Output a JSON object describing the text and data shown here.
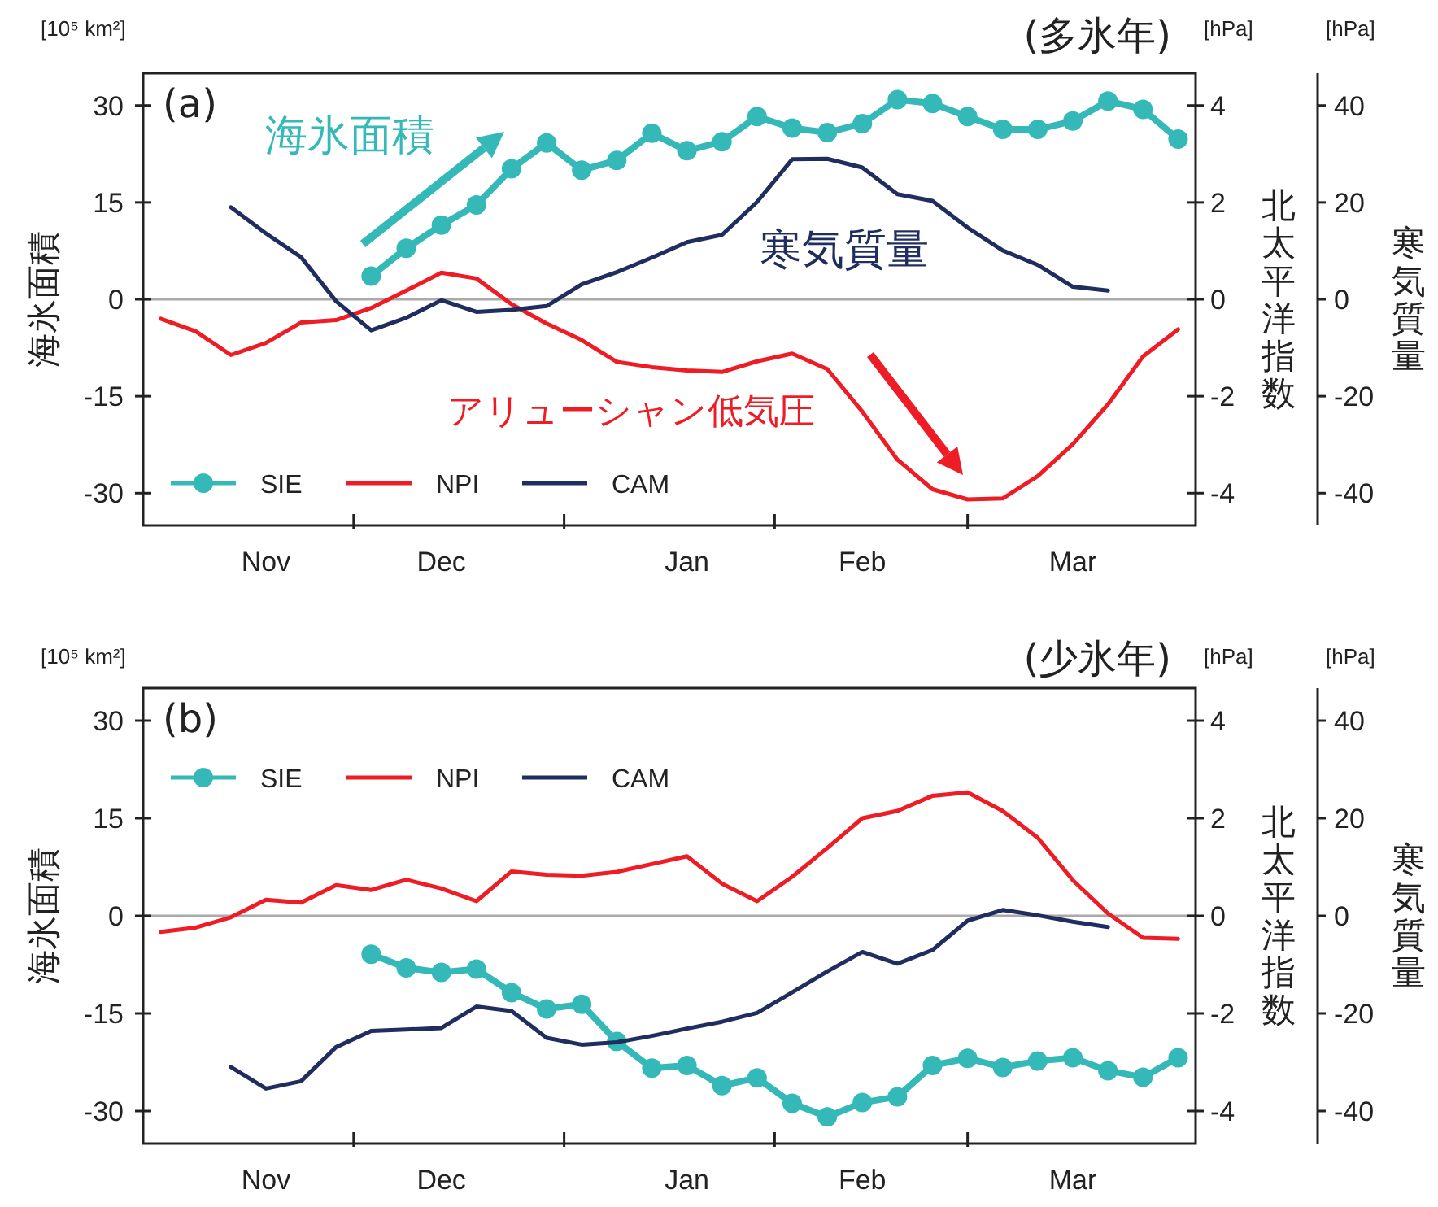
{
  "chart_data": [
    {
      "type": "line",
      "title": "(多氷年)",
      "ylabel": "海氷面積",
      "y2label": "北太平洋指数",
      "y3label": "寒気質量",
      "annotations": [
        "(a)",
        "[10⁵ km²]",
        "[hPa]",
        "[hPa]",
        "海氷面積",
        "寒気質量",
        "アリューシャン低気圧"
      ],
      "categories": [
        null,
        null,
        null,
        "Nov",
        null,
        null,
        null,
        null,
        "Dec",
        null,
        null,
        null,
        null,
        null,
        null,
        "Jan",
        null,
        null,
        null,
        null,
        "Feb",
        null,
        null,
        null,
        null,
        null,
        "Mar",
        null,
        null,
        null
      ],
      "ylim": [
        -35,
        35
      ],
      "yticks": [
        -30,
        -15,
        0,
        15,
        30
      ],
      "y2lim": [
        -4.667,
        4.667
      ],
      "y2ticks": [
        -4,
        -2,
        0,
        2,
        4
      ],
      "y3lim": [
        -46.67,
        46.67
      ],
      "y3ticks": [
        -40,
        -20,
        0,
        20,
        40
      ],
      "ref_lines": [
        {
          "axis": "y",
          "value": 0,
          "color": "#aaaaaa"
        }
      ],
      "legend": "bottom left",
      "series": [
        {
          "name": "SIE",
          "color": "#35b8b8",
          "marker": "circle",
          "values": [
            null,
            null,
            null,
            null,
            null,
            null,
            3.6,
            7.9,
            11.5,
            14.6,
            20.2,
            24.2,
            20,
            21.5,
            25.7,
            23,
            24.4,
            28.3,
            26.5,
            25.8,
            27.2,
            30.9,
            30.3,
            28.3,
            26.3,
            26.3,
            27.6,
            30.7,
            29.4,
            24.8
          ]
        },
        {
          "name": "NPI",
          "color": "#ee1c24",
          "axis": "y2",
          "values": [
            -0.4,
            -0.66,
            -1.15,
            -0.9,
            -0.48,
            -0.43,
            -0.18,
            0.18,
            0.55,
            0.43,
            -0.1,
            -0.5,
            -0.84,
            -1.29,
            -1.4,
            -1.47,
            -1.5,
            -1.28,
            -1.12,
            -1.44,
            -2.32,
            -3.31,
            -3.92,
            -4.13,
            -4.11,
            -3.65,
            -2.99,
            -2.17,
            -1.18,
            -0.62
          ]
        },
        {
          "name": "CAM",
          "color": "#1f2d5f",
          "axis": "y3",
          "values": [
            null,
            null,
            19,
            13.6,
            8.7,
            -0.4,
            -6.4,
            -3.8,
            -0.2,
            -2.6,
            -2.2,
            -1.4,
            3.1,
            5.6,
            8.6,
            11.8,
            13.3,
            20.1,
            28.9,
            29,
            27.2,
            21.7,
            20.3,
            14.8,
            10.1,
            7.1,
            2.6,
            1.8,
            null,
            null
          ]
        }
      ]
    },
    {
      "type": "line",
      "title": "(少氷年)",
      "ylabel": "海氷面積",
      "y2label": "北太平洋指数",
      "y3label": "寒気質量",
      "annotations": [
        "(b)",
        "[10⁵ km²]",
        "[hPa]",
        "[hPa]"
      ],
      "categories": [
        null,
        null,
        null,
        "Nov",
        null,
        null,
        null,
        null,
        "Dec",
        null,
        null,
        null,
        null,
        null,
        null,
        "Jan",
        null,
        null,
        null,
        null,
        "Feb",
        null,
        null,
        null,
        null,
        null,
        "Mar",
        null,
        null,
        null
      ],
      "ylim": [
        -35,
        35
      ],
      "yticks": [
        -30,
        -15,
        0,
        15,
        30
      ],
      "y2lim": [
        -4.667,
        4.667
      ],
      "y2ticks": [
        -4,
        -2,
        0,
        2,
        4
      ],
      "y3lim": [
        -46.67,
        46.67
      ],
      "y3ticks": [
        -40,
        -20,
        0,
        20,
        40
      ],
      "ref_lines": [
        {
          "axis": "y",
          "value": 0,
          "color": "#aaaaaa"
        }
      ],
      "legend": "top left",
      "series": [
        {
          "name": "SIE",
          "color": "#35b8b8",
          "marker": "circle",
          "values": [
            null,
            null,
            null,
            null,
            null,
            null,
            -5.9,
            -8,
            -8.7,
            -8.2,
            -11.8,
            -14.3,
            -13.6,
            -19.3,
            -23.4,
            -23,
            -26.1,
            -24.9,
            -28.8,
            -30.9,
            -28.7,
            -27.8,
            -23,
            -21.9,
            -23.3,
            -22.3,
            -21.8,
            -23.8,
            -24.8,
            -21.8
          ]
        },
        {
          "name": "NPI",
          "color": "#ee1c24",
          "axis": "y2",
          "values": [
            -0.33,
            -0.24,
            -0.03,
            0.33,
            0.27,
            0.63,
            0.53,
            0.74,
            0.56,
            0.3,
            0.91,
            0.84,
            0.82,
            0.9,
            1.06,
            1.22,
            0.66,
            0.3,
            0.8,
            1.39,
            2.0,
            2.15,
            2.46,
            2.53,
            2.15,
            1.6,
            0.73,
            0.05,
            -0.45,
            -0.47
          ]
        },
        {
          "name": "CAM",
          "color": "#1f2d5f",
          "axis": "y3",
          "values": [
            null,
            null,
            -31,
            -35.4,
            -33.9,
            -26.9,
            -23.6,
            -23.3,
            -23,
            -18.6,
            -19.5,
            -25,
            -26.4,
            -25.9,
            -24.6,
            -23.1,
            -21.7,
            -19.9,
            -15.7,
            -11.4,
            -7.4,
            -9.8,
            -7,
            -1,
            1.2,
            0.1,
            -1.2,
            -2.3,
            null,
            null
          ]
        }
      ]
    }
  ]
}
